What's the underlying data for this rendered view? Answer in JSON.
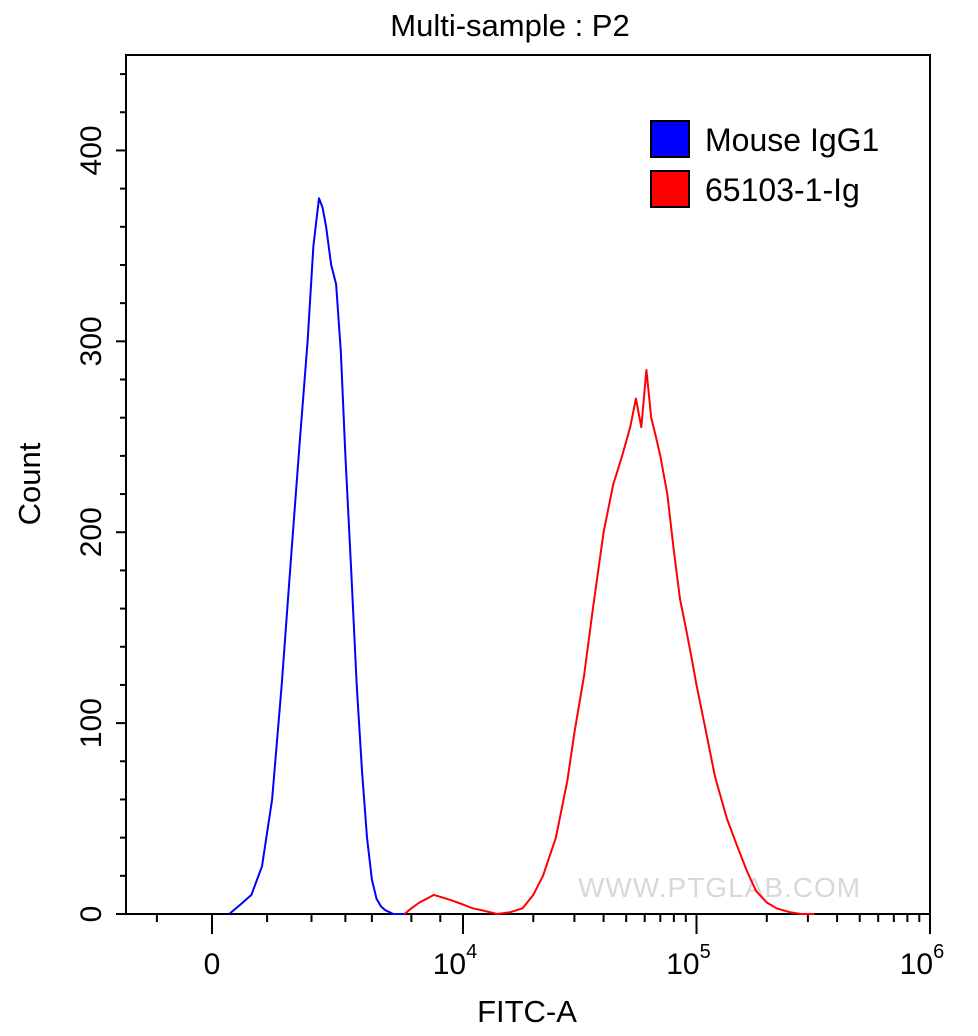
{
  "chart_data": {
    "type": "line",
    "title": "Multi-sample : P2",
    "xlabel": "FITC-A",
    "ylabel": "Count",
    "xscale": "biexponential (linear near 0, log above 10^4)",
    "ylim": [
      0,
      450
    ],
    "y_ticks": [
      "0",
      "100",
      "200",
      "300",
      "400"
    ],
    "x_ticks": [
      {
        "value": 0,
        "base": "0",
        "exp": ""
      },
      {
        "value": 10000,
        "base": "10",
        "exp": "4"
      },
      {
        "value": 100000,
        "base": "10",
        "exp": "5"
      },
      {
        "value": 1000000,
        "base": "10",
        "exp": "6"
      }
    ],
    "grid": false,
    "legend_position": "top-right",
    "series": [
      {
        "name": "Mouse IgG1",
        "color": "#0000ff",
        "x": [
          300,
          500,
          700,
          900,
          1100,
          1300,
          1500,
          1700,
          1900,
          2050,
          2200,
          2300,
          2400,
          2550,
          2700,
          2850,
          3000,
          3200,
          3400,
          3600,
          3800,
          4000,
          4200,
          4400,
          4600,
          4800,
          5000,
          5300,
          5600
        ],
        "y": [
          0,
          5,
          10,
          25,
          60,
          120,
          185,
          245,
          300,
          350,
          375,
          370,
          360,
          340,
          330,
          295,
          240,
          180,
          120,
          75,
          40,
          18,
          8,
          4,
          2,
          1,
          0,
          0,
          0
        ]
      },
      {
        "name": "65103-1-Ig",
        "color": "#ff0000",
        "x": [
          5600,
          6000,
          6500,
          7000,
          7500,
          8000,
          8500,
          9000,
          10000,
          11000,
          12000,
          13000,
          14000,
          16000,
          18000,
          20000,
          22000,
          25000,
          28000,
          30000,
          33000,
          36000,
          40000,
          44000,
          48000,
          52000,
          55000,
          58000,
          61000,
          64000,
          67000,
          70000,
          75000,
          80000,
          85000,
          90000,
          95000,
          100000,
          110000,
          120000,
          135000,
          150000,
          165000,
          180000,
          200000,
          220000,
          250000,
          280000,
          320000
        ],
        "y": [
          0,
          3,
          6,
          8,
          10,
          9,
          8,
          7,
          5,
          3,
          2,
          1,
          0,
          1,
          3,
          10,
          20,
          40,
          70,
          95,
          125,
          160,
          200,
          225,
          240,
          255,
          270,
          255,
          285,
          260,
          250,
          240,
          220,
          190,
          165,
          150,
          135,
          120,
          95,
          72,
          50,
          35,
          22,
          12,
          6,
          3,
          1,
          0,
          0
        ]
      }
    ],
    "watermark": "WWW.PTGLAB.COM"
  }
}
